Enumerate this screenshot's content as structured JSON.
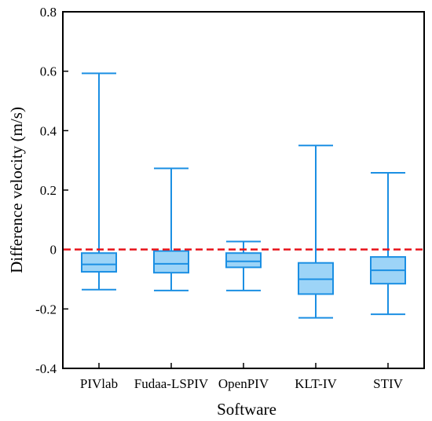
{
  "chart_data": {
    "type": "box",
    "title": "",
    "xlabel": "Software",
    "ylabel": "Difference velocity (m/s)",
    "ylim": [
      -0.4,
      0.8
    ],
    "yticks": [
      -0.4,
      -0.2,
      0,
      0.2,
      0.4,
      0.6,
      0.8
    ],
    "ytick_labels": [
      "-0.4",
      "-0.2",
      "0",
      "0.2",
      "0.4",
      "0.6",
      "0.8"
    ],
    "categories": [
      "PIVlab",
      "Fudaa-LSPIV",
      "OpenPIV",
      "KLT-IV",
      "STIV"
    ],
    "boxes": [
      {
        "name": "PIVlab",
        "min": -0.135,
        "q1": -0.075,
        "median": -0.05,
        "q3": -0.012,
        "max": 0.593
      },
      {
        "name": "Fudaa-LSPIV",
        "min": -0.138,
        "q1": -0.078,
        "median": -0.048,
        "q3": -0.005,
        "max": 0.273
      },
      {
        "name": "OpenPIV",
        "min": -0.138,
        "q1": -0.06,
        "median": -0.04,
        "q3": -0.012,
        "max": 0.027
      },
      {
        "name": "KLT-IV",
        "min": -0.23,
        "q1": -0.15,
        "median": -0.1,
        "q3": -0.045,
        "max": 0.35
      },
      {
        "name": "STIV",
        "min": -0.218,
        "q1": -0.115,
        "median": -0.07,
        "q3": -0.025,
        "max": 0.258
      }
    ],
    "reference_line": {
      "y": 0,
      "style": "dashed",
      "color": "#e8141b"
    },
    "colors": {
      "box_fill": "#9dd4f7",
      "box_stroke": "#1b8fe3",
      "axis": "#000000"
    },
    "grid": false,
    "legend": "none"
  }
}
